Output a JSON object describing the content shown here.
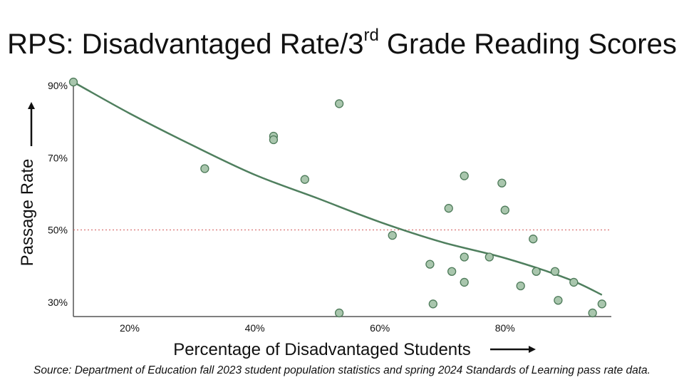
{
  "title": {
    "main": "RPS: Disadvantaged Rate/3",
    "superscript": "rd",
    "rest": " Grade Reading Scores"
  },
  "source": "Source: Department of Education fall 2023 student population statistics and spring 2024 Standards of Learning pass rate data.",
  "colors": {
    "point_fill": "#a9c6ad",
    "point_stroke": "#4d7a59",
    "trend": "#4f7f5e",
    "reference": "#d25a5a",
    "axis": "#555555"
  },
  "chart_data": {
    "type": "scatter",
    "title": "RPS: Disadvantaged Rate/3rd Grade Reading Scores",
    "xlabel": "Percentage of Disadvantaged Students",
    "ylabel": "Passage Rate",
    "xlim": [
      11,
      97
    ],
    "ylim": [
      26,
      92
    ],
    "x_ticks": [
      {
        "value": 20,
        "label": "20%"
      },
      {
        "value": 40,
        "label": "40%"
      },
      {
        "value": 60,
        "label": "60%"
      },
      {
        "value": 80,
        "label": "80%"
      }
    ],
    "y_ticks": [
      {
        "value": 90,
        "label": "90%"
      },
      {
        "value": 70,
        "label": "70%"
      },
      {
        "value": 50,
        "label": "50%"
      },
      {
        "value": 30,
        "label": "30%"
      }
    ],
    "reference_line": {
      "y": 50,
      "style": "dotted"
    },
    "trendline": [
      [
        11,
        91
      ],
      [
        20,
        82.3
      ],
      [
        30,
        73.5
      ],
      [
        40,
        65.3
      ],
      [
        50,
        58.8
      ],
      [
        60,
        52.2
      ],
      [
        70,
        46.6
      ],
      [
        80,
        42.2
      ],
      [
        90,
        36.5
      ],
      [
        95.5,
        32
      ]
    ],
    "points": [
      {
        "x": 11,
        "y": 91
      },
      {
        "x": 32,
        "y": 67
      },
      {
        "x": 43,
        "y": 76
      },
      {
        "x": 43,
        "y": 75
      },
      {
        "x": 48,
        "y": 64
      },
      {
        "x": 53.5,
        "y": 85
      },
      {
        "x": 53.5,
        "y": 27
      },
      {
        "x": 62,
        "y": 48.5
      },
      {
        "x": 68,
        "y": 40.5
      },
      {
        "x": 68.5,
        "y": 29.5
      },
      {
        "x": 71,
        "y": 56
      },
      {
        "x": 71.5,
        "y": 38.5
      },
      {
        "x": 73.5,
        "y": 35.5
      },
      {
        "x": 73.5,
        "y": 65
      },
      {
        "x": 73.5,
        "y": 42.5
      },
      {
        "x": 77.5,
        "y": 42.5
      },
      {
        "x": 79.5,
        "y": 63
      },
      {
        "x": 80,
        "y": 55.5
      },
      {
        "x": 82.5,
        "y": 34.5
      },
      {
        "x": 84.5,
        "y": 47.5
      },
      {
        "x": 85,
        "y": 38.5
      },
      {
        "x": 88,
        "y": 38.5
      },
      {
        "x": 88.5,
        "y": 30.5
      },
      {
        "x": 91,
        "y": 35.5
      },
      {
        "x": 94,
        "y": 27
      },
      {
        "x": 95.5,
        "y": 29.5
      }
    ]
  }
}
